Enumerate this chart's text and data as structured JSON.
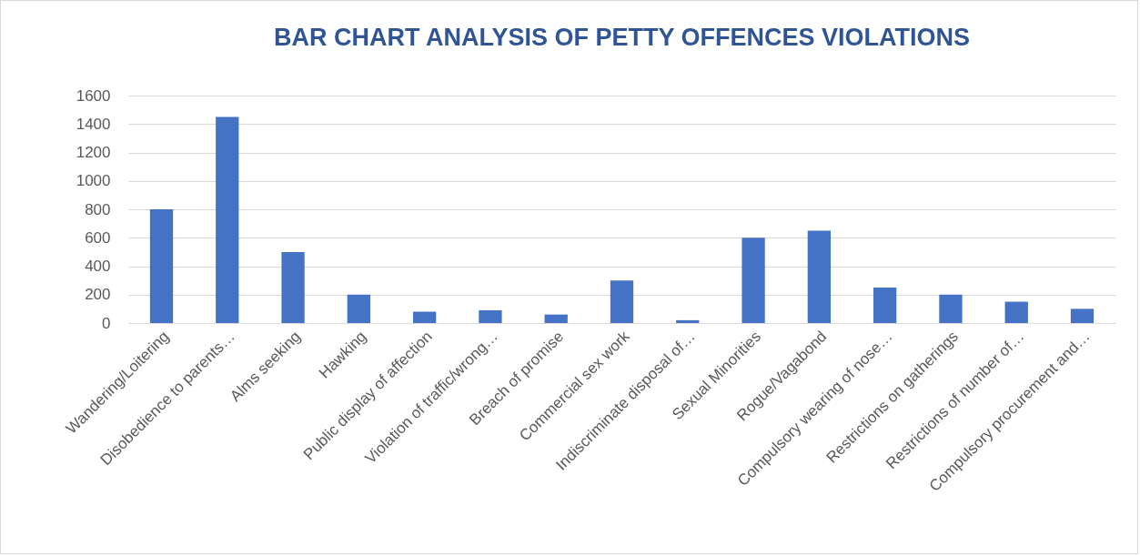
{
  "chart_data": {
    "type": "bar",
    "title": "BAR CHART ANALYSIS OF PETTY OFFENCES VIOLATIONS",
    "categories": [
      "Wandering/Loitering",
      "Disobedience to parents…",
      "Alms seeking",
      "Hawking",
      "Public display of affection",
      "Violation of traffic/wrong…",
      "Breach of promise",
      "Commercial sex work",
      "Indiscriminate disposal of…",
      "Sexual Minorities",
      "Rogue/Vagabond",
      "Compulsory wearing of nose…",
      "Restrictions on gatherings",
      "Restrictions of number of…",
      "Compulsory procurement and…"
    ],
    "values": [
      800,
      1450,
      500,
      200,
      80,
      90,
      60,
      300,
      20,
      600,
      650,
      250,
      200,
      150,
      100
    ],
    "color": "#4472c4",
    "ylim": [
      0,
      1600
    ],
    "yticks": [
      0,
      200,
      400,
      600,
      800,
      1000,
      1200,
      1400,
      1600
    ],
    "grid": true
  }
}
